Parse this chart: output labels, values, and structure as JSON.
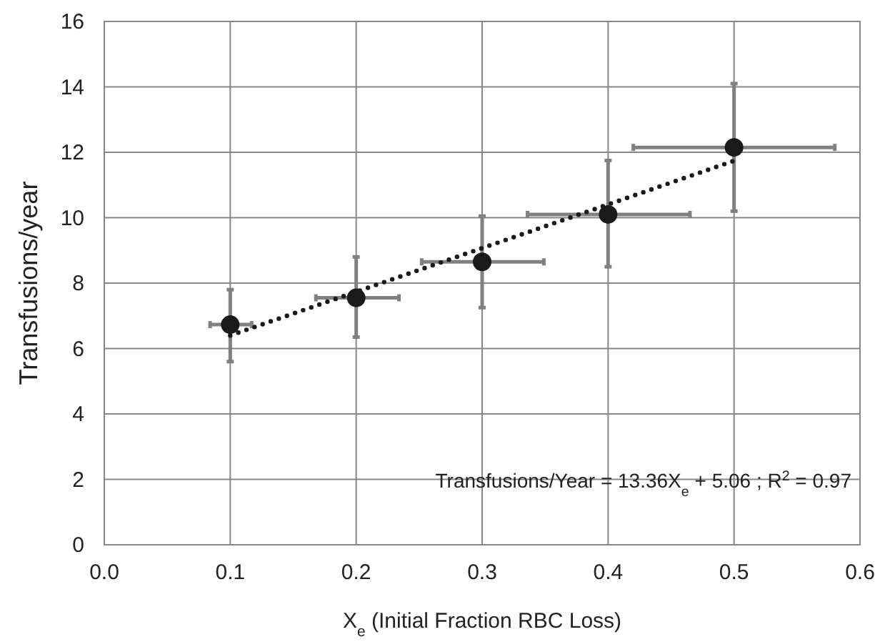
{
  "chart_data": {
    "type": "scatter",
    "xlabel": "X$_{e}$ (Initial Fraction RBC Loss)",
    "ylabel": "Transfusions/year",
    "xlim": [
      0,
      0.6
    ],
    "xticks": [
      {
        "value": 0,
        "label": "0.0"
      },
      0.1,
      0.2,
      0.3,
      0.4,
      0.5,
      0.6
    ],
    "ylim": [
      0,
      16
    ],
    "yticks": [
      0,
      2,
      4,
      6,
      8,
      10,
      12,
      14,
      16
    ],
    "grid": true,
    "series": [
      {
        "color": "#1a1a1a",
        "marker": "circle",
        "x": [
          0.1,
          0.2,
          0.3,
          0.4,
          0.5
        ],
        "values": [
          6.73,
          7.55,
          8.65,
          10.1,
          12.15
        ],
        "errors": [
          [
            5.6,
            7.8
          ],
          [
            6.35,
            8.8
          ],
          [
            7.25,
            10.05
          ],
          [
            8.5,
            11.75
          ],
          [
            10.2,
            14.1
          ]
        ],
        "xerrors": [
          [
            0.084,
            0.117
          ],
          [
            0.168,
            0.234
          ],
          [
            0.252,
            0.349
          ],
          [
            0.336,
            0.465
          ],
          [
            0.42,
            0.58
          ]
        ]
      },
      {
        "type": "line",
        "color": "#1a1a1a",
        "line_style": "dotted",
        "marker": "none",
        "x": [
          0.1,
          0.5
        ],
        "values": [
          6.4,
          11.74
        ]
      }
    ],
    "annotations": [
      "Transfusions/Year = 13.36X$_{e}$ + 5.06 ; R$^{2}$ = 0.97"
    ]
  }
}
